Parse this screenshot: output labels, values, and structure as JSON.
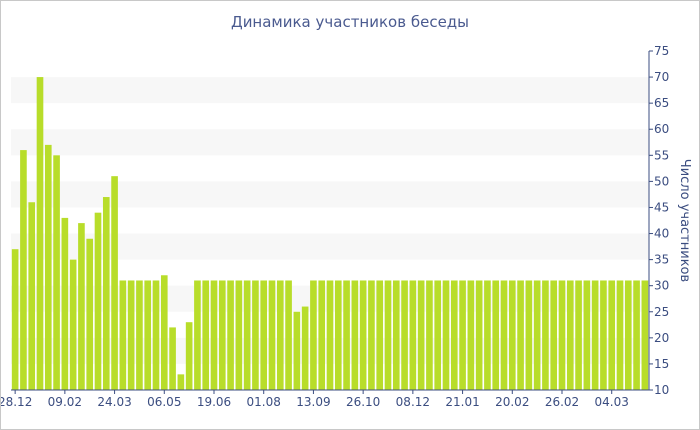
{
  "chart_data": {
    "type": "bar",
    "title": "Динамика участников беседы",
    "xlabel": "",
    "ylabel": "Число участников",
    "ylim": [
      10,
      75
    ],
    "yticks": [
      10,
      15,
      20,
      25,
      30,
      35,
      40,
      45,
      50,
      55,
      60,
      65,
      70,
      75
    ],
    "y_axis_side": "right",
    "grid": "alternating horizontal bands",
    "bar_color": "#b8dd2a",
    "band_color": "#f7f7f7",
    "text_color": "#3b4d80",
    "x_tick_labels": [
      {
        "label": "28.12",
        "index": 0
      },
      {
        "label": "09.02",
        "index": 6
      },
      {
        "label": "24.03",
        "index": 12
      },
      {
        "label": "06.05",
        "index": 18
      },
      {
        "label": "19.06",
        "index": 24
      },
      {
        "label": "01.08",
        "index": 30
      },
      {
        "label": "13.09",
        "index": 36
      },
      {
        "label": "26.10",
        "index": 42
      },
      {
        "label": "08.12",
        "index": 48
      },
      {
        "label": "21.01",
        "index": 54
      },
      {
        "label": "20.02",
        "index": 60
      },
      {
        "label": "26.02",
        "index": 66
      },
      {
        "label": "04.03",
        "index": 72
      }
    ],
    "values": [
      37,
      56,
      46,
      70,
      57,
      55,
      43,
      35,
      42,
      39,
      44,
      47,
      51,
      31,
      31,
      31,
      31,
      31,
      32,
      22,
      13,
      23,
      31,
      31,
      31,
      31,
      31,
      31,
      31,
      31,
      31,
      31,
      31,
      31,
      25,
      26,
      31,
      31,
      31,
      31,
      31,
      31,
      31,
      31,
      31,
      31,
      31,
      31,
      31,
      31,
      31,
      31,
      31,
      31,
      31,
      31,
      31,
      31,
      31,
      31,
      31,
      31,
      31,
      31,
      31,
      31,
      31,
      31,
      31,
      31,
      31,
      31,
      31,
      31,
      31,
      31,
      31
    ]
  }
}
